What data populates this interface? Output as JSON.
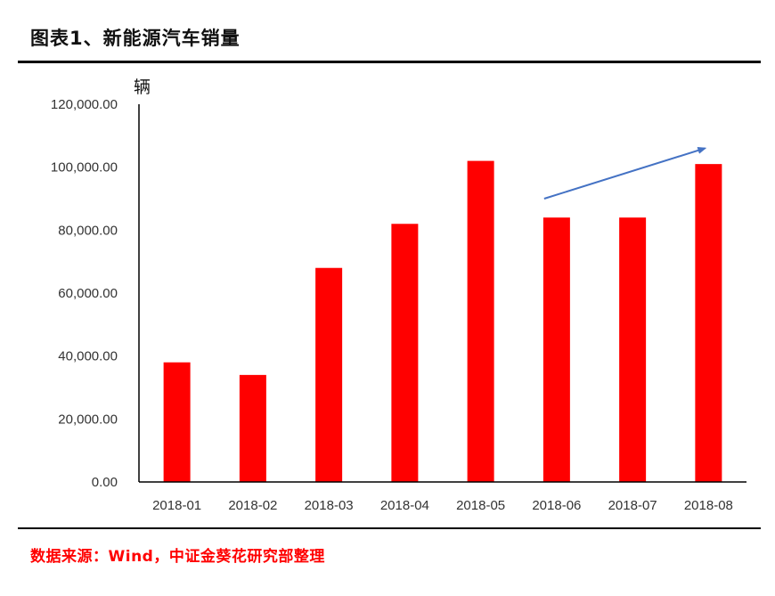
{
  "figure": {
    "title": "图表1、新能源汽车销量",
    "source": "数据来源：Wind，中证金葵花研究部整理"
  },
  "colors": {
    "bar": "#ff0000",
    "arrow": "#4472c4",
    "axis": "#000000"
  },
  "chart_data": {
    "type": "bar",
    "categories": [
      "2018-01",
      "2018-02",
      "2018-03",
      "2018-04",
      "2018-05",
      "2018-06",
      "2018-07",
      "2018-08"
    ],
    "values": [
      38000,
      34000,
      68000,
      82000,
      102000,
      84000,
      84000,
      101000
    ],
    "ylabel": "辆",
    "ylim": [
      0,
      120000
    ],
    "yticks": [
      0,
      20000,
      40000,
      60000,
      80000,
      100000,
      120000
    ],
    "ytick_labels": [
      "0.00",
      "20,000.00",
      "40,000.00",
      "60,000.00",
      "80,000.00",
      "100,000.00",
      "120,000.00"
    ],
    "grid": false,
    "legend": "none",
    "annotations": [
      {
        "type": "arrow",
        "from": {
          "x": "2018-06",
          "y": 90000
        },
        "to": {
          "x": "2018-08",
          "y": 106000
        }
      }
    ]
  }
}
